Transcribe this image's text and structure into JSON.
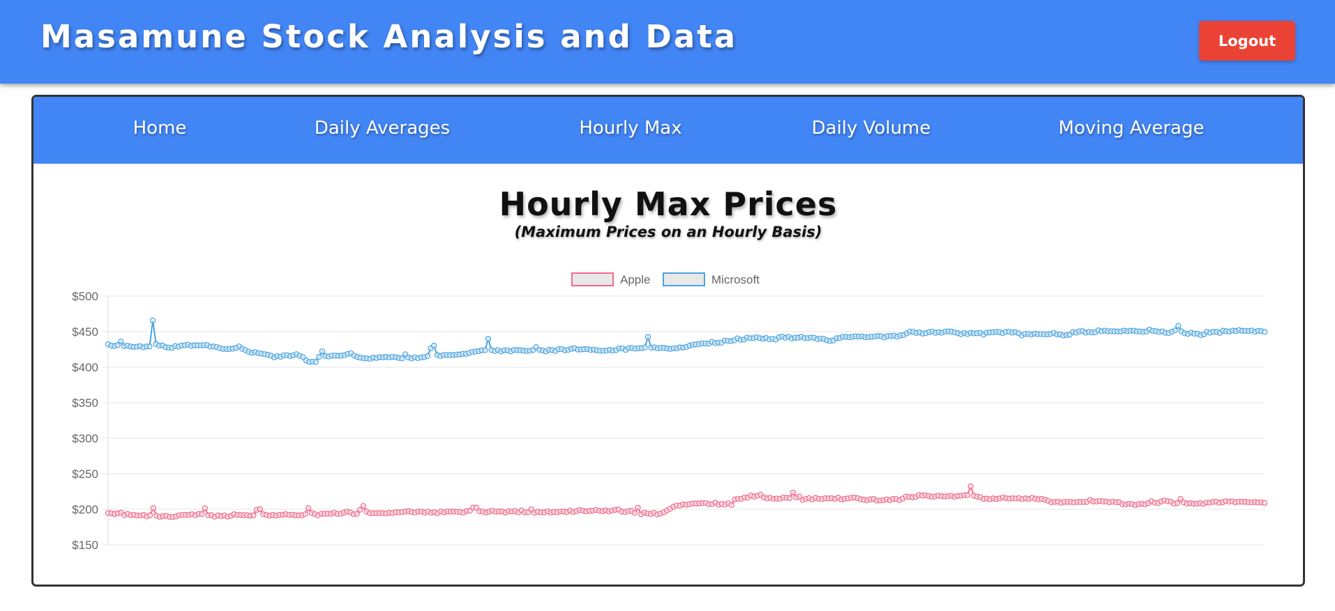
{
  "header": {
    "title": "Masamune Stock Analysis and Data",
    "logout_label": "Logout"
  },
  "nav": {
    "items": [
      "Home",
      "Daily Averages",
      "Hourly Max",
      "Daily Volume",
      "Moving Average"
    ]
  },
  "page": {
    "title": "Hourly Max Prices",
    "subtitle": "(Maximum Prices on an Hourly Basis)"
  },
  "colors": {
    "accent": "#4285f4",
    "logout": "#ea4335",
    "apple": "#f06a8a",
    "microsoft": "#4aa3df"
  },
  "chart_data": {
    "type": "line",
    "title": "",
    "xlabel": "",
    "ylabel": "",
    "ylim": [
      150,
      500
    ],
    "y_ticks": [
      "$500",
      "$450",
      "$400",
      "$350",
      "$300",
      "$250",
      "$200",
      "$150"
    ],
    "grid": true,
    "legend": "top-center",
    "series": [
      {
        "name": "Apple",
        "color": "#f06a8a",
        "values": [
          194.6,
          194.4,
          193.2,
          194.3,
          195.3,
          191.9,
          193.5,
          191.8,
          192.1,
          191.2,
          191.1,
          192.0,
          190.1,
          191.7,
          201.6,
          190.9,
          189.3,
          190.4,
          190.8,
          189.3,
          189.2,
          189.9,
          191.6,
          192.0,
          192.2,
          192.2,
          193.0,
          191.7,
          193.3,
          193.3,
          201.4,
          191.8,
          191.8,
          189.6,
          191.4,
          190.4,
          191.3,
          189.6,
          190.6,
          193.0,
          192.1,
          192.0,
          191.8,
          191.8,
          190.9,
          191.6,
          199.0,
          200.1,
          193.1,
          192.1,
          191.1,
          192.0,
          191.1,
          192.1,
          192.4,
          193.1,
          192.2,
          192.4,
          191.5,
          191.5,
          191.5,
          193.1,
          201.7,
          194.8,
          193.2,
          191.6,
          193.6,
          193.7,
          193.9,
          193.5,
          195.2,
          193.5,
          193.7,
          195.3,
          196.8,
          195.6,
          193.0,
          193.6,
          199.3,
          204.6,
          196.8,
          194.5,
          194.5,
          194.5,
          194.6,
          194.4,
          194.1,
          195.1,
          194.6,
          195.9,
          195.8,
          196.1,
          196.8,
          197.4,
          196.2,
          195.5,
          196.8,
          196.7,
          195.4,
          196.7,
          195.1,
          195.8,
          194.5,
          196.9,
          195.6,
          197.0,
          196.6,
          197.0,
          196.5,
          196.3,
          195.3,
          197.4,
          197.9,
          202.4,
          202.2,
          197.3,
          196.6,
          195.4,
          196.8,
          197.9,
          196.7,
          196.9,
          196.9,
          195.3,
          197.2,
          197.0,
          197.4,
          195.7,
          198.2,
          195.7,
          195.8,
          199.9,
          195.1,
          196.4,
          195.6,
          195.8,
          197.0,
          195.5,
          196.3,
          195.7,
          197.1,
          196.8,
          196.3,
          198.1,
          196.3,
          197.4,
          198.9,
          198.0,
          196.9,
          197.8,
          198.0,
          199.0,
          198.0,
          197.4,
          198.3,
          197.1,
          198.0,
          199.2,
          199.6,
          196.9,
          196.1,
          197.5,
          197.7,
          195.0,
          202.4,
          192.9,
          195.2,
          194.1,
          193.2,
          195.1,
          192.8,
          193.9,
          195.6,
          198.3,
          200.8,
          203.6,
          205.4,
          205.1,
          206.9,
          206.5,
          207.2,
          208.1,
          208.1,
          208.1,
          208.7,
          208.8,
          207.1,
          207.3,
          209.2,
          206.5,
          207.5,
          206.7,
          208.4,
          206.1,
          213.9,
          214.6,
          214.7,
          216.7,
          216.5,
          219.2,
          217.9,
          219.0,
          220.4,
          216.6,
          215.4,
          216.1,
          214.7,
          215.0,
          214.7,
          216.6,
          216.2,
          215.7,
          223.5,
          216.8,
          217.8,
          213.2,
          214.7,
          215.7,
          213.8,
          216.0,
          214.8,
          214.2,
          215.5,
          215.3,
          215.6,
          214.7,
          216.4,
          213.8,
          214.8,
          215.3,
          216.2,
          216.5,
          215.7,
          214.0,
          213.4,
          212.6,
          214.0,
          214.5,
          212.4,
          212.4,
          212.7,
          213.9,
          212.7,
          214.5,
          214.3,
          212.9,
          215.1,
          217.8,
          217.4,
          216.9,
          217.3,
          219.8,
          219.4,
          219.7,
          218.7,
          217.5,
          218.0,
          219.2,
          218.4,
          218.1,
          218.3,
          219.0,
          217.6,
          218.7,
          219.0,
          219.8,
          220.0,
          232.4,
          219.1,
          217.8,
          217.1,
          214.6,
          215.0,
          214.1,
          215.4,
          214.5,
          215.3,
          216.7,
          215.6,
          215.0,
          215.5,
          215.2,
          215.7,
          214.3,
          215.4,
          214.6,
          216.1,
          215.0,
          214.0,
          214.5,
          213.5,
          211.8,
          209.8,
          210.4,
          210.7,
          209.1,
          210.4,
          210.4,
          210.3,
          209.8,
          210.3,
          210.1,
          210.2,
          210.5,
          213.1,
          211.0,
          210.9,
          211.7,
          211.1,
          211.0,
          209.7,
          210.8,
          209.8,
          210.0,
          207.2,
          206.8,
          207.8,
          207.3,
          206.0,
          207.1,
          207.8,
          207.0,
          208.6,
          211.4,
          209.2,
          208.7,
          211.0,
          212.4,
          211.4,
          210.7,
          207.9,
          208.8,
          214.5,
          209.7,
          208.1,
          208.5,
          207.7,
          207.7,
          208.6,
          207.4,
          209.4,
          209.2,
          210.4,
          210.8,
          209.1,
          210.0,
          211.4,
          210.7,
          211.2,
          209.9,
          210.6,
          210.5,
          210.6,
          209.9,
          209.7,
          210.1,
          209.6,
          209.7,
          208.9
        ]
      },
      {
        "name": "Microsoft",
        "color": "#4aa3df",
        "values": [
          432.3,
          430.2,
          429.7,
          431.1,
          436.3,
          429.5,
          430.3,
          429.0,
          428.4,
          428.8,
          429.5,
          427.9,
          429.1,
          429.1,
          465.8,
          432.5,
          430.3,
          430.6,
          428.2,
          427.5,
          427.3,
          429.6,
          428.9,
          430.4,
          430.8,
          431.6,
          429.9,
          430.7,
          430.7,
          430.5,
          431.0,
          431.1,
          428.8,
          429.1,
          428.3,
          426.7,
          425.7,
          425.5,
          425.4,
          426.2,
          427.1,
          429.3,
          425.8,
          423.9,
          421.7,
          420.2,
          421.0,
          419.7,
          419.1,
          418.2,
          417.5,
          416.2,
          413.7,
          415.5,
          414.6,
          416.6,
          416.8,
          415.7,
          416.7,
          418.2,
          415.9,
          414.1,
          409.4,
          407.4,
          407.8,
          407.5,
          414.5,
          422.2,
          415.7,
          415.1,
          416.2,
          416.3,
          416.0,
          416.2,
          417.1,
          418.6,
          419.6,
          416.2,
          414.4,
          413.3,
          412.6,
          412.3,
          411.7,
          413.4,
          412.8,
          413.9,
          413.8,
          414.4,
          413.6,
          414.3,
          413.9,
          412.9,
          412.4,
          418.1,
          413.5,
          412.5,
          413.7,
          412.6,
          413.6,
          414.1,
          415.5,
          426.7,
          430.3,
          417.2,
          415.6,
          417.1,
          417.1,
          417.0,
          417.1,
          417.7,
          417.8,
          418.7,
          418.6,
          419.9,
          421.5,
          422.1,
          422.6,
          423.6,
          423.9,
          439.8,
          424.1,
          422.7,
          424.0,
          422.1,
          423.6,
          423.6,
          422.3,
          424.1,
          424.0,
          423.8,
          423.2,
          422.8,
          423.0,
          424.1,
          428.1,
          424.4,
          423.4,
          422.2,
          424.3,
          424.0,
          422.7,
          425.3,
          425.5,
          423.8,
          424.4,
          425.8,
          426.6,
          424.8,
          424.8,
          425.3,
          425.5,
          424.3,
          424.6,
          423.7,
          423.0,
          423.0,
          423.4,
          424.3,
          423.3,
          424.1,
          426.5,
          426.4,
          424.3,
          426.8,
          427.0,
          426.0,
          426.6,
          426.7,
          427.7,
          442.5,
          427.4,
          427.9,
          426.5,
          427.3,
          427.2,
          426.3,
          425.7,
          426.5,
          426.5,
          427.9,
          427.5,
          428.4,
          430.3,
          431.5,
          432.1,
          432.5,
          433.4,
          433.3,
          433.0,
          435.6,
          433.8,
          434.4,
          434.3,
          437.3,
          437.2,
          436.6,
          437.6,
          440.6,
          438.6,
          438.8,
          441.6,
          440.7,
          440.8,
          442.1,
          440.8,
          440.0,
          441.0,
          439.2,
          439.7,
          438.9,
          441.9,
          443.1,
          441.4,
          442.6,
          440.4,
          441.3,
          441.5,
          442.7,
          441.0,
          440.8,
          441.7,
          441.4,
          439.4,
          440.2,
          439.8,
          437.8,
          436.9,
          437.5,
          440.8,
          441.0,
          442.5,
          442.5,
          442.1,
          442.7,
          443.4,
          443.0,
          443.3,
          442.3,
          442.2,
          442.8,
          443.1,
          443.9,
          443.5,
          441.9,
          443.5,
          443.8,
          444.3,
          442.9,
          444.8,
          445.1,
          447.6,
          450.1,
          449.6,
          448.2,
          448.8,
          447.2,
          447.8,
          449.4,
          450.0,
          448.3,
          449.2,
          448.4,
          450.1,
          450.4,
          450.1,
          448.9,
          447.7,
          446.4,
          448.1,
          446.6,
          448.3,
          447.6,
          447.7,
          448.2,
          445.8,
          448.3,
          448.8,
          449.2,
          449.6,
          449.3,
          447.8,
          449.5,
          449.9,
          448.6,
          449.3,
          447.6,
          444.6,
          446.9,
          446.7,
          445.9,
          447.2,
          446.5,
          446.6,
          446.1,
          446.1,
          446.8,
          448.1,
          446.1,
          446.2,
          444.6,
          445.1,
          445.8,
          449.2,
          448.5,
          450.3,
          450.7,
          448.7,
          449.5,
          448.8,
          449.1,
          451.8,
          450.6,
          451.4,
          450.5,
          450.6,
          450.3,
          450.2,
          450.1,
          451.4,
          450.6,
          451.2,
          451.4,
          450.3,
          450.4,
          449.7,
          450.2,
          452.8,
          451.1,
          450.7,
          449.7,
          450.4,
          448.3,
          447.9,
          449.9,
          451.9,
          458.0,
          450.3,
          447.7,
          446.9,
          448.6,
          447.2,
          447.1,
          445.1,
          446.2,
          449.7,
          448.4,
          449.7,
          449.7,
          448.2,
          451.3,
          450.7,
          450.1,
          451.5,
          450.8,
          452.1,
          451.2,
          451.1,
          450.8,
          451.5,
          450.0,
          451.2,
          450.8,
          449.7
        ]
      }
    ]
  }
}
